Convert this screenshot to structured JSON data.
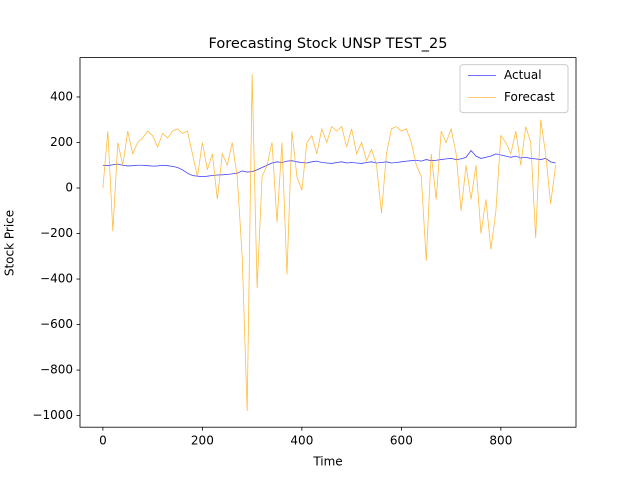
{
  "chart_data": {
    "type": "line",
    "title": "Forecasting Stock UNSP TEST_25",
    "x_label": "Time",
    "y_label": "Stock Price",
    "x": [
      0,
      10,
      20,
      30,
      40,
      50,
      60,
      70,
      80,
      90,
      100,
      110,
      120,
      130,
      140,
      150,
      160,
      170,
      180,
      190,
      200,
      210,
      220,
      230,
      240,
      250,
      260,
      270,
      280,
      290,
      300,
      310,
      320,
      330,
      340,
      350,
      360,
      370,
      380,
      390,
      400,
      410,
      420,
      430,
      440,
      450,
      460,
      470,
      480,
      490,
      500,
      510,
      520,
      530,
      540,
      550,
      560,
      570,
      580,
      590,
      600,
      610,
      620,
      630,
      640,
      650,
      660,
      670,
      680,
      690,
      700,
      710,
      720,
      730,
      740,
      750,
      760,
      770,
      780,
      790,
      800,
      810,
      820,
      830,
      840,
      850,
      860,
      870,
      880,
      890,
      900,
      910
    ],
    "series": [
      {
        "name": "Actual",
        "color": "#0000ff",
        "values": [
          100,
          98,
          102,
          105,
          100,
          97,
          98,
          100,
          100,
          98,
          96,
          97,
          100,
          98,
          95,
          90,
          80,
          65,
          55,
          52,
          50,
          52,
          55,
          57,
          58,
          60,
          62,
          65,
          75,
          70,
          72,
          80,
          90,
          100,
          110,
          115,
          112,
          118,
          120,
          115,
          112,
          110,
          115,
          118,
          112,
          110,
          108,
          112,
          115,
          110,
          112,
          110,
          108,
          112,
          115,
          110,
          112,
          115,
          110,
          112,
          115,
          118,
          120,
          122,
          118,
          125,
          120,
          122,
          125,
          128,
          130,
          125,
          128,
          135,
          165,
          140,
          130,
          135,
          140,
          150,
          145,
          140,
          135,
          140,
          132,
          135,
          130,
          128,
          125,
          130,
          115,
          110
        ]
      },
      {
        "name": "Forecast",
        "color": "#ffa500",
        "values": [
          0,
          250,
          -190,
          200,
          100,
          250,
          150,
          200,
          220,
          250,
          230,
          180,
          240,
          220,
          250,
          260,
          240,
          250,
          150,
          50,
          200,
          80,
          150,
          -50,
          150,
          100,
          200,
          50,
          -300,
          -980,
          500,
          -440,
          50,
          100,
          200,
          -150,
          200,
          -380,
          250,
          50,
          -10,
          200,
          230,
          150,
          260,
          200,
          270,
          250,
          270,
          180,
          260,
          150,
          200,
          120,
          170,
          100,
          -110,
          150,
          260,
          270,
          250,
          260,
          200,
          100,
          50,
          -320,
          150,
          -50,
          250,
          200,
          260,
          150,
          -100,
          100,
          -50,
          100,
          -200,
          -50,
          -270,
          -100,
          230,
          200,
          150,
          250,
          100,
          270,
          200,
          -220,
          300,
          150,
          -70,
          100
        ]
      }
    ],
    "xlim": [
      -46,
      951
    ],
    "ylim": [
      -1051,
      573
    ],
    "xticks": [
      0,
      200,
      400,
      600,
      800
    ],
    "yticks": [
      {
        "value": -1000,
        "label": "−1000"
      },
      {
        "value": -800,
        "label": "−800"
      },
      {
        "value": -600,
        "label": "−600"
      },
      {
        "value": -400,
        "label": "−400"
      },
      {
        "value": -200,
        "label": "−200"
      },
      0,
      200,
      400
    ],
    "legend": "upper right",
    "grid": false
  }
}
